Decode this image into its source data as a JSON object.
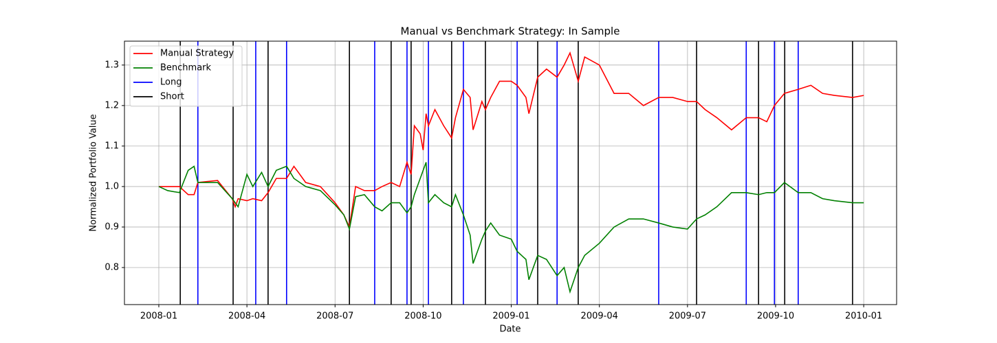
{
  "chart_data": {
    "type": "line",
    "title": "Manual vs Benchmark Strategy: In Sample",
    "x_label": "Date",
    "y_label": "Normalized Portfolio Value",
    "x": [
      0,
      0.3,
      0.7,
      1.0,
      1.2,
      1.33,
      2.0,
      2.5,
      2.6,
      2.7,
      3.0,
      3.2,
      3.5,
      3.72,
      4.0,
      4.35,
      4.6,
      5.0,
      5.5,
      6.0,
      6.3,
      6.49,
      6.7,
      7.0,
      7.35,
      7.6,
      7.91,
      8.2,
      8.45,
      8.59,
      8.7,
      8.8,
      8.9,
      9.0,
      9.1,
      9.18,
      9.4,
      9.7,
      9.97,
      10.1,
      10.37,
      10.6,
      10.7,
      11.0,
      11.12,
      11.3,
      11.6,
      12.0,
      12.2,
      12.5,
      12.6,
      12.9,
      13.2,
      13.56,
      13.8,
      14.0,
      14.28,
      14.5,
      15.0,
      15.5,
      16.0,
      16.5,
      17.02,
      17.5,
      18.0,
      18.31,
      18.6,
      19.0,
      19.5,
      20.0,
      20.42,
      20.7,
      20.96,
      21.3,
      21.77,
      22.2,
      22.6,
      23.0,
      23.62,
      24.0
    ],
    "series": [
      {
        "name": "Manual Strategy",
        "color": "red",
        "values": [
          1.0,
          1.0,
          1.0,
          0.98,
          0.98,
          1.01,
          1.015,
          0.97,
          0.95,
          0.97,
          0.965,
          0.97,
          0.965,
          0.985,
          1.02,
          1.02,
          1.05,
          1.01,
          1.0,
          0.96,
          0.93,
          0.9,
          1.0,
          0.99,
          0.99,
          1.0,
          1.01,
          1.0,
          1.06,
          1.03,
          1.15,
          1.14,
          1.13,
          1.09,
          1.18,
          1.15,
          1.19,
          1.15,
          1.12,
          1.17,
          1.24,
          1.22,
          1.14,
          1.21,
          1.19,
          1.22,
          1.26,
          1.26,
          1.25,
          1.22,
          1.18,
          1.27,
          1.29,
          1.27,
          1.3,
          1.33,
          1.26,
          1.32,
          1.3,
          1.23,
          1.23,
          1.2,
          1.22,
          1.22,
          1.21,
          1.21,
          1.19,
          1.17,
          1.14,
          1.17,
          1.17,
          1.16,
          1.2,
          1.23,
          1.24,
          1.25,
          1.23,
          1.225,
          1.22,
          1.225
        ]
      },
      {
        "name": "Benchmark",
        "color": "green",
        "values": [
          1.0,
          0.99,
          0.985,
          1.04,
          1.05,
          1.01,
          1.01,
          0.97,
          0.96,
          0.95,
          1.03,
          1.0,
          1.035,
          1.0,
          1.04,
          1.05,
          1.02,
          1.0,
          0.99,
          0.955,
          0.93,
          0.895,
          0.975,
          0.98,
          0.95,
          0.94,
          0.96,
          0.96,
          0.935,
          0.95,
          0.98,
          1.0,
          1.02,
          1.04,
          1.06,
          0.96,
          0.98,
          0.96,
          0.95,
          0.98,
          0.93,
          0.88,
          0.81,
          0.87,
          0.89,
          0.91,
          0.88,
          0.87,
          0.84,
          0.82,
          0.77,
          0.83,
          0.82,
          0.78,
          0.8,
          0.74,
          0.8,
          0.83,
          0.86,
          0.9,
          0.92,
          0.92,
          0.91,
          0.9,
          0.895,
          0.92,
          0.93,
          0.95,
          0.985,
          0.985,
          0.98,
          0.985,
          0.985,
          1.01,
          0.985,
          0.985,
          0.97,
          0.965,
          0.96,
          0.96
        ]
      }
    ],
    "vlines": [
      {
        "name": "Long",
        "color": "blue",
        "x": [
          1.33,
          3.3,
          4.35,
          7.35,
          8.45,
          9.18,
          10.37,
          12.2,
          13.56,
          17.02,
          20.0,
          20.96,
          21.77
        ]
      },
      {
        "name": "Short",
        "color": "black",
        "x": [
          0.73,
          2.53,
          3.72,
          6.49,
          7.91,
          8.59,
          9.97,
          11.12,
          12.9,
          14.28,
          18.31,
          20.42,
          21.31,
          23.62
        ]
      }
    ],
    "xlim": [
      -1.17,
      25.12
    ],
    "xticks": [
      {
        "value": 0,
        "label": "2008-01"
      },
      {
        "value": 3,
        "label": "2008-04"
      },
      {
        "value": 6,
        "label": "2008-07"
      },
      {
        "value": 9,
        "label": "2008-10"
      },
      {
        "value": 12,
        "label": "2009-01"
      },
      {
        "value": 15,
        "label": "2009-04"
      },
      {
        "value": 18,
        "label": "2009-07"
      },
      {
        "value": 21,
        "label": "2009-10"
      },
      {
        "value": 24,
        "label": "2010-01"
      }
    ],
    "ylim": [
      0.7085,
      1.359
    ],
    "yticks": [
      0.8,
      0.9,
      {
        "value": 1,
        "label": "1.0"
      },
      1.1,
      1.2,
      1.3
    ],
    "grid": true,
    "legend": "upper-left"
  }
}
